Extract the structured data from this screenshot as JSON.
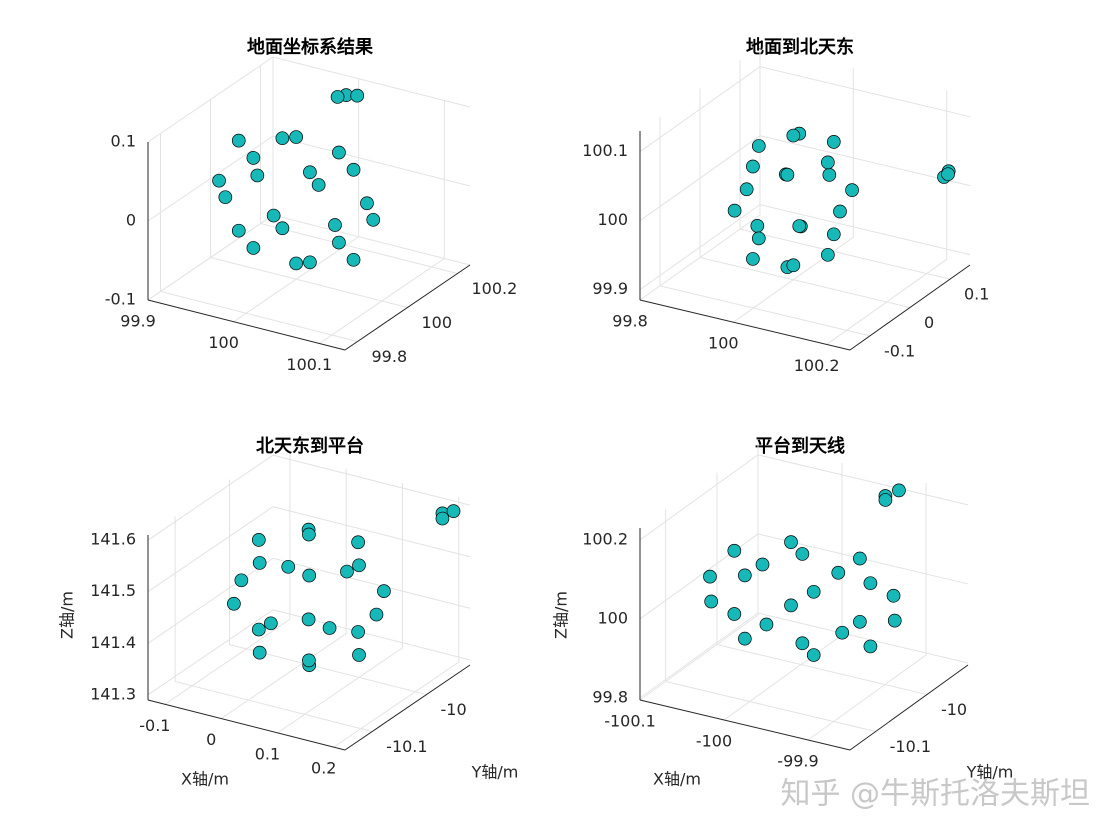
{
  "chart_data": [
    {
      "type": "scatter3d",
      "title": "地面坐标系结果",
      "color": "#17b8b8",
      "grid": true,
      "xlim": [
        99.9,
        100.13
      ],
      "ylim": [
        99.75,
        100.25
      ],
      "zlim": [
        -0.1,
        0.1
      ],
      "xticks": [
        99.9,
        100,
        100.1
      ],
      "yticks": [
        99.8,
        100,
        100.2
      ],
      "zticks": [
        -0.1,
        0,
        0.1
      ],
      "x": [
        100.09,
        100.064,
        100,
        99.936,
        99.91,
        99.936,
        100,
        100.064,
        100.067,
        100.033,
        99.967,
        99.933,
        99.967,
        100.033,
        100.067,
        100.033,
        99.967,
        99.933,
        99.967,
        100.033,
        100,
        100,
        100.0,
        100.01,
        99.99
      ],
      "y": [
        100,
        100.064,
        100.09,
        100.064,
        100,
        99.936,
        99.91,
        99.936,
        100,
        100.058,
        100.058,
        100,
        99.942,
        99.942,
        100,
        100.058,
        100.058,
        100,
        99.942,
        99.942,
        100,
        100,
        100.2,
        100.21,
        100.2
      ],
      "z": [
        0,
        0,
        0,
        0,
        0,
        0,
        0,
        0,
        0.057,
        0.057,
        0.057,
        0.057,
        0.057,
        0.057,
        -0.057,
        -0.057,
        -0.057,
        -0.057,
        -0.057,
        -0.057,
        0.08,
        -0.08,
        0.09,
        0.09,
        0.085
      ]
    },
    {
      "type": "scatter3d",
      "title": "地面到北天东",
      "color": "#17b8b8",
      "grid": true,
      "xlim": [
        99.8,
        100.25
      ],
      "ylim": [
        -0.15,
        0.15
      ],
      "zlim": [
        99.885,
        100.13
      ],
      "xticks": [
        99.8,
        100,
        100.2
      ],
      "yticks": [
        -0.1,
        0,
        0.1
      ],
      "zticks": [
        99.9,
        100,
        100.1
      ],
      "x": [
        100.1,
        100.071,
        100,
        99.929,
        99.9,
        99.929,
        100,
        100.071,
        100.074,
        100.037,
        99.963,
        99.926,
        99.963,
        100.037,
        100.074,
        100.037,
        99.963,
        99.926,
        99.963,
        100.037,
        100,
        100,
        100.22,
        100.23,
        100.22
      ],
      "y": [
        0,
        0.064,
        0.09,
        0.064,
        0,
        -0.064,
        -0.09,
        -0.064,
        0,
        0.058,
        0.058,
        0,
        -0.058,
        -0.058,
        0,
        0.058,
        0.058,
        0,
        -0.058,
        -0.058,
        0,
        0,
        0.12,
        0.12,
        0.13
      ],
      "z": [
        100,
        100,
        100,
        100,
        100,
        100,
        100,
        100,
        100.067,
        100.067,
        100.067,
        100.067,
        100.067,
        100.067,
        99.933,
        99.933,
        99.933,
        99.933,
        99.933,
        99.933,
        100.094,
        99.906,
        100.02,
        100.03,
        100.02
      ]
    },
    {
      "type": "scatter3d",
      "title": "北天东到平台",
      "color": "#17b8b8",
      "grid": true,
      "xlabel": "X轴/m",
      "ylabel": "Y轴/m",
      "zlabel": "Z轴/m",
      "xlim": [
        -0.13,
        0.22
      ],
      "ylim": [
        -10.15,
        -9.92
      ],
      "zlim": [
        141.29,
        141.61
      ],
      "xticks": [
        -0.1,
        0,
        0.1,
        0.2
      ],
      "yticks": [
        -10.1,
        -10
      ],
      "zticks": [
        141.3,
        141.4,
        141.5,
        141.6
      ],
      "x": [
        0.16,
        0.125,
        0.04,
        -0.045,
        -0.08,
        -0.045,
        0.04,
        0.125,
        0.129,
        0.084,
        -0.004,
        -0.049,
        -0.004,
        0.084,
        0.129,
        0.084,
        -0.004,
        -0.049,
        -0.004,
        0.084,
        0.04,
        0.04,
        0.2,
        0.21,
        0.2
      ],
      "y": [
        -10.03,
        -9.98,
        -9.96,
        -9.98,
        -10.03,
        -10.08,
        -10.1,
        -10.08,
        -10.03,
        -9.985,
        -9.985,
        -10.03,
        -10.075,
        -10.075,
        -10.03,
        -9.985,
        -9.985,
        -10.03,
        -10.075,
        -10.075,
        -10.03,
        -10.03,
        -9.95,
        -9.94,
        -9.95
      ],
      "z": [
        141.45,
        141.45,
        141.45,
        141.45,
        141.45,
        141.45,
        141.45,
        141.45,
        141.537,
        141.537,
        141.537,
        141.537,
        141.537,
        141.537,
        141.363,
        141.363,
        141.363,
        141.363,
        141.363,
        141.363,
        141.572,
        141.328,
        141.6,
        141.6,
        141.59
      ]
    },
    {
      "type": "scatter3d",
      "title": "平台到天线",
      "color": "#17b8b8",
      "grid": true,
      "xlabel": "X轴/m",
      "ylabel": "Y轴/m",
      "zlabel": "Z轴/m",
      "xlim": [
        -100.1,
        -99.85
      ],
      "ylim": [
        -10.15,
        -9.92
      ],
      "zlim": [
        99.795,
        100.23
      ],
      "xticks": [
        -100.1,
        -100,
        -99.9
      ],
      "yticks": [
        -10.1,
        -10
      ],
      "zticks": [
        99.8,
        100,
        100.2
      ],
      "x": [
        -99.87,
        -99.902,
        -99.98,
        -100.058,
        -100.09,
        -100.058,
        -99.98,
        -99.902,
        -99.899,
        -99.939,
        -100.021,
        -100.061,
        -100.021,
        -99.939,
        -99.899,
        -99.939,
        -100.021,
        -100.061,
        -100.021,
        -99.939,
        -99.98,
        -99.98,
        -99.93,
        -99.92,
        -99.93
      ],
      "y": [
        -10.03,
        -9.98,
        -9.96,
        -9.98,
        -10.03,
        -10.08,
        -10.1,
        -10.08,
        -10.03,
        -9.985,
        -9.985,
        -10.03,
        -10.075,
        -10.075,
        -10.03,
        -9.985,
        -9.985,
        -10.03,
        -10.075,
        -10.075,
        -10.03,
        -10.03,
        -9.95,
        -9.94,
        -9.95
      ],
      "z": [
        100,
        100,
        100,
        100,
        100,
        100,
        100,
        100,
        100.08,
        100.08,
        100.08,
        100.08,
        100.08,
        100.08,
        99.92,
        99.92,
        99.92,
        99.92,
        99.92,
        99.92,
        100.113,
        99.887,
        100.21,
        100.22,
        100.2
      ]
    }
  ],
  "watermark": "知乎 @牛斯托洛夫斯坦"
}
